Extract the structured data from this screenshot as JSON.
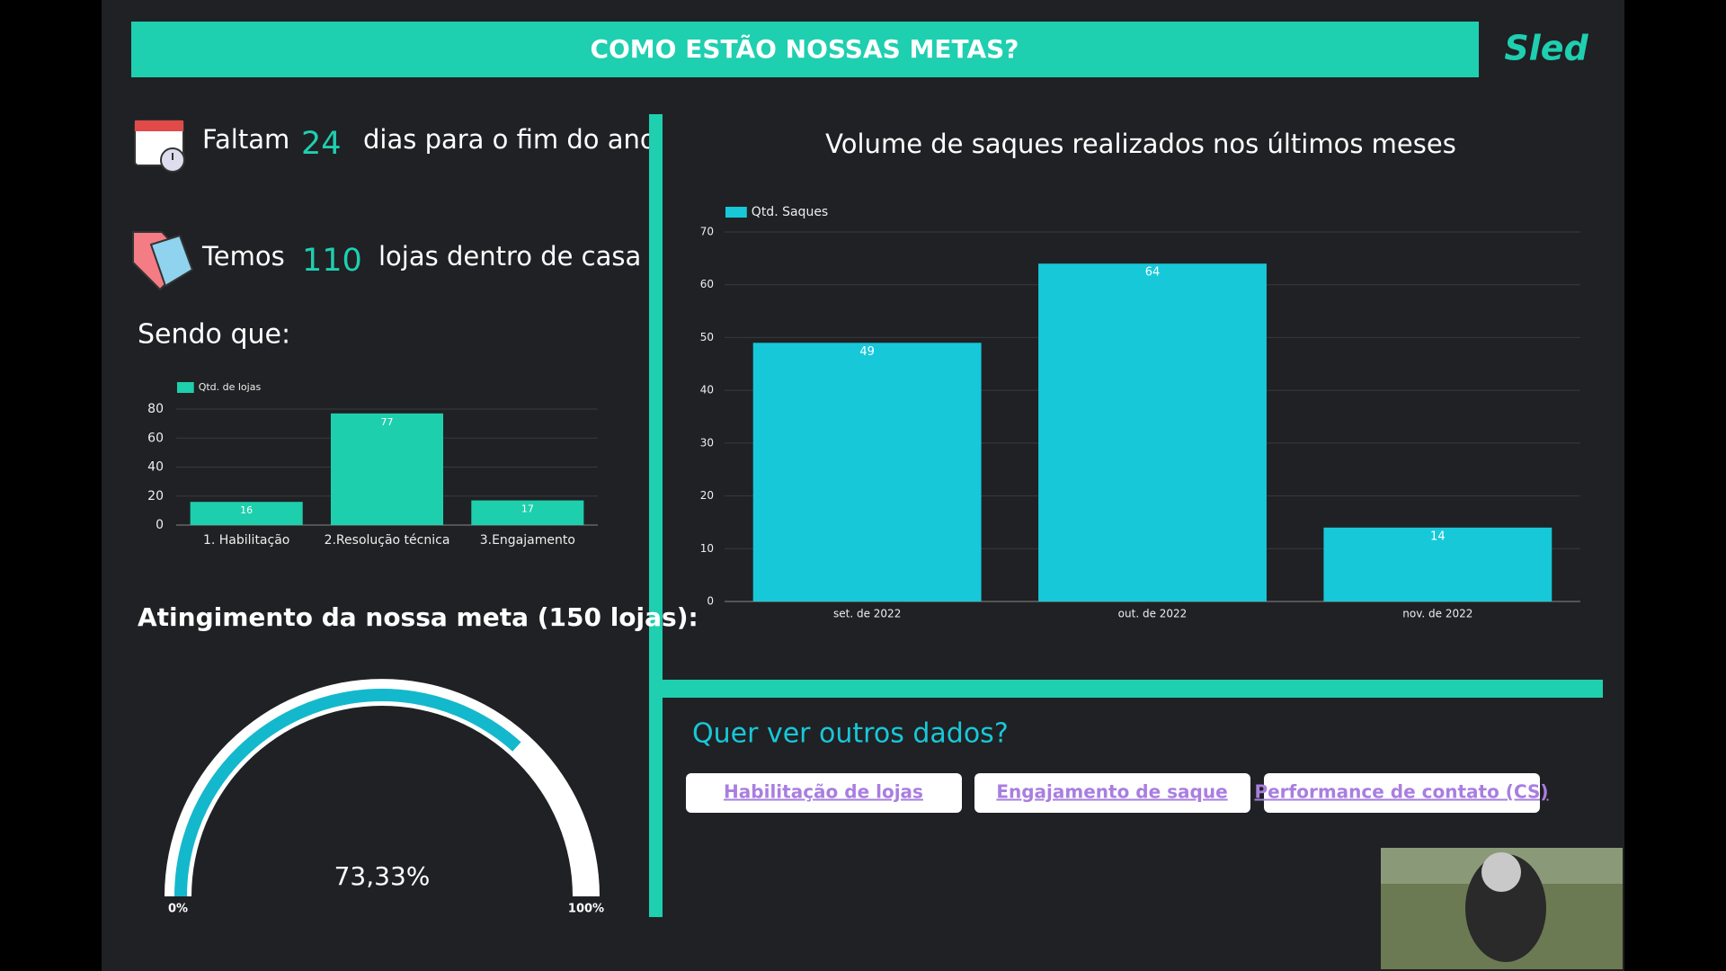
{
  "header": {
    "title": "COMO ESTÃO NOSSAS METAS?",
    "logo": "Sled"
  },
  "stats": [
    {
      "prefix": "Faltam",
      "value": 24,
      "suffix": "dias para o fim do ano"
    },
    {
      "prefix": "Temos",
      "value": 110,
      "suffix": "lojas dentro de casa"
    }
  ],
  "subheading": "Sendo que:",
  "chart_data": [
    {
      "type": "bar",
      "categories": [
        "1. Habilitação",
        "2.Resolução técnica",
        "3.Engajamento"
      ],
      "series": [
        {
          "name": "Qtd. de lojas",
          "color": "#1ecfad",
          "values": [
            16,
            77,
            17
          ]
        }
      ],
      "ylim": [
        0,
        80
      ],
      "yticks": [
        0,
        20,
        40,
        60,
        80
      ],
      "grid": true
    },
    {
      "type": "bar",
      "title": "Volume de saques realizados nos últimos meses",
      "categories": [
        "set. de 2022",
        "out. de 2022",
        "nov. de 2022"
      ],
      "series": [
        {
          "name": "Qtd. Saques",
          "color": "#17c8d9",
          "values": [
            49,
            64,
            14
          ]
        }
      ],
      "ylim": [
        0,
        70
      ],
      "yticks": [
        0,
        10,
        20,
        30,
        40,
        50,
        60,
        70
      ],
      "grid": true
    },
    {
      "type": "gauge",
      "title": "Atingimento da nossa meta (150 lojas):",
      "value": 73.33,
      "value_label": "73,33%",
      "color": "#14b8cc",
      "ylim": [
        0,
        100
      ],
      "yticks": [
        {
          "value": 0,
          "label": "0%"
        },
        {
          "value": 100,
          "label": "100%"
        }
      ]
    }
  ],
  "links": {
    "title": "Quer ver outros dados?",
    "items": [
      "Habilitação de lojas",
      "Engajamento de saque",
      "Performance de contato (CS)"
    ]
  }
}
